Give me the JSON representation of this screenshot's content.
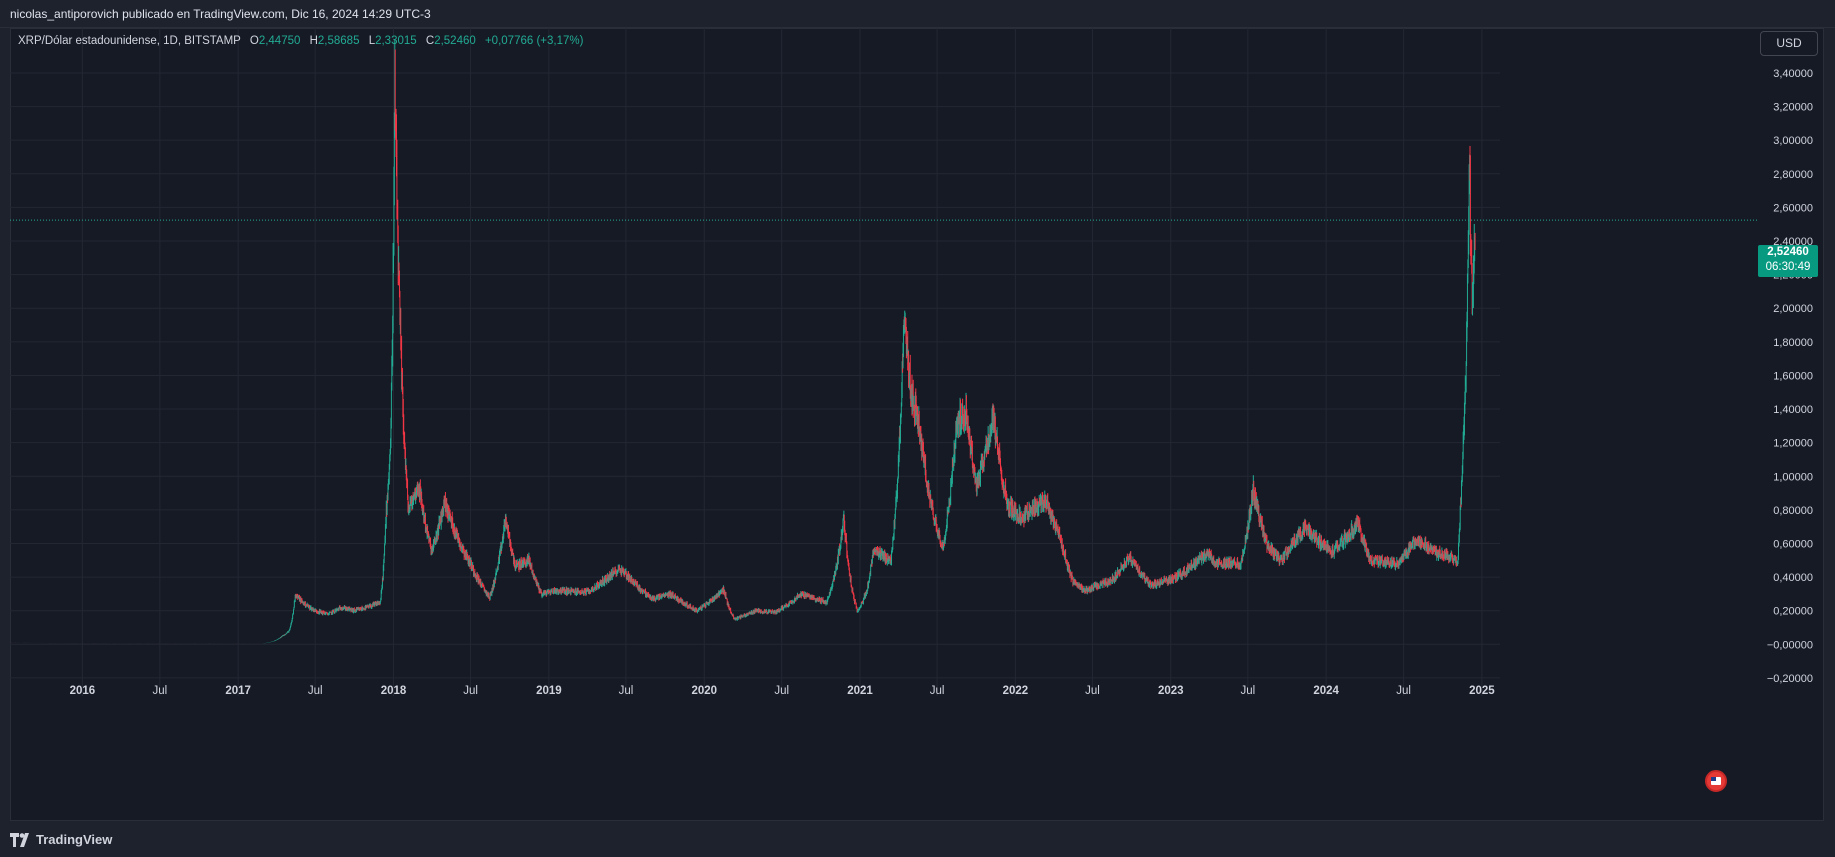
{
  "header": {
    "publisher_line": "nicolas_antiporovich publicado en TradingView.com, Dic 16, 2024 14:29 UTC-3"
  },
  "legend": {
    "symbol": "XRP/Dólar estadounidense, 1D, BITSTAMP",
    "open_label": "O",
    "open": "2,44750",
    "high_label": "H",
    "high": "2,58685",
    "low_label": "L",
    "low": "2,33015",
    "close_label": "C",
    "close": "2,52460",
    "change": "+0,07766 (+3,17%)"
  },
  "currency_button": "USD",
  "price_badge": {
    "price": "2,52460",
    "countdown": "06:30:49"
  },
  "footer": {
    "brand": "TradingView"
  },
  "colors": {
    "up": "#22ab94",
    "down": "#f23645",
    "background": "#161a25",
    "grid": "#232733",
    "badge": "#089981"
  },
  "chart_data": {
    "type": "candlestick",
    "symbol": "XRP/USD",
    "interval": "1D",
    "exchange": "BITSTAMP",
    "ylim": [
      -0.26,
      3.62
    ],
    "y_ticks": [
      "3,40000",
      "3,20000",
      "3,00000",
      "2,80000",
      "2,60000",
      "2,40000",
      "2,20000",
      "2,00000",
      "1,80000",
      "1,60000",
      "1,40000",
      "1,20000",
      "1,00000",
      "0,80000",
      "0,60000",
      "0,40000",
      "0,20000",
      "−0,00000",
      "−0,20000"
    ],
    "y_tick_values": [
      3.4,
      3.2,
      3.0,
      2.8,
      2.6,
      2.4,
      2.2,
      2.0,
      1.8,
      1.6,
      1.4,
      1.2,
      1.0,
      0.8,
      0.6,
      0.4,
      0.2,
      0.0,
      -0.2
    ],
    "x_ticks": [
      "2016",
      "Jul",
      "2017",
      "Jul",
      "2018",
      "Jul",
      "2019",
      "Jul",
      "2020",
      "Jul",
      "2021",
      "Jul",
      "2022",
      "Jul",
      "2023",
      "Jul",
      "2024",
      "Jul",
      "2025"
    ],
    "x_tick_dates": [
      "2016-01-01",
      "2016-07-01",
      "2017-01-01",
      "2017-07-01",
      "2018-01-01",
      "2018-07-01",
      "2019-01-01",
      "2019-07-01",
      "2020-01-01",
      "2020-07-01",
      "2021-01-01",
      "2021-07-01",
      "2022-01-01",
      "2022-07-01",
      "2023-01-01",
      "2023-07-01",
      "2024-01-01",
      "2024-07-01",
      "2025-01-01"
    ],
    "x_range": [
      "2015-07-15",
      "2025-01-20"
    ],
    "last_price": 2.5246,
    "grid": true,
    "price_path": [
      [
        "2015-07-15",
        0.008
      ],
      [
        "2016-07-01",
        0.007
      ],
      [
        "2017-03-01",
        0.006
      ],
      [
        "2017-04-15",
        0.05
      ],
      [
        "2017-05-01",
        0.08
      ],
      [
        "2017-05-15",
        0.3
      ],
      [
        "2017-06-01",
        0.25
      ],
      [
        "2017-07-01",
        0.2
      ],
      [
        "2017-08-01",
        0.18
      ],
      [
        "2017-09-01",
        0.22
      ],
      [
        "2017-10-01",
        0.2
      ],
      [
        "2017-11-01",
        0.22
      ],
      [
        "2017-12-01",
        0.25
      ],
      [
        "2017-12-15",
        0.8
      ],
      [
        "2017-12-25",
        1.2
      ],
      [
        "2018-01-04",
        3.3
      ],
      [
        "2018-01-20",
        1.6
      ],
      [
        "2018-02-05",
        0.8
      ],
      [
        "2018-03-01",
        0.95
      ],
      [
        "2018-04-01",
        0.55
      ],
      [
        "2018-05-01",
        0.85
      ],
      [
        "2018-07-01",
        0.48
      ],
      [
        "2018-08-15",
        0.28
      ],
      [
        "2018-09-21",
        0.75
      ],
      [
        "2018-10-15",
        0.46
      ],
      [
        "2018-11-15",
        0.5
      ],
      [
        "2018-12-15",
        0.3
      ],
      [
        "2019-01-15",
        0.32
      ],
      [
        "2019-04-01",
        0.31
      ],
      [
        "2019-06-15",
        0.45
      ],
      [
        "2019-07-01",
        0.42
      ],
      [
        "2019-09-01",
        0.27
      ],
      [
        "2019-10-15",
        0.3
      ],
      [
        "2019-12-15",
        0.2
      ],
      [
        "2020-02-15",
        0.33
      ],
      [
        "2020-03-12",
        0.15
      ],
      [
        "2020-05-01",
        0.2
      ],
      [
        "2020-06-15",
        0.19
      ],
      [
        "2020-08-15",
        0.3
      ],
      [
        "2020-10-15",
        0.25
      ],
      [
        "2020-11-24",
        0.75
      ],
      [
        "2020-12-25",
        0.2
      ],
      [
        "2021-01-15",
        0.3
      ],
      [
        "2021-02-01",
        0.55
      ],
      [
        "2021-03-15",
        0.5
      ],
      [
        "2021-04-14",
        1.95
      ],
      [
        "2021-05-01",
        1.5
      ],
      [
        "2021-05-20",
        1.3
      ],
      [
        "2021-06-15",
        0.85
      ],
      [
        "2021-07-15",
        0.58
      ],
      [
        "2021-08-15",
        1.3
      ],
      [
        "2021-09-07",
        1.4
      ],
      [
        "2021-10-01",
        0.95
      ],
      [
        "2021-11-10",
        1.35
      ],
      [
        "2021-12-15",
        0.82
      ],
      [
        "2022-01-15",
        0.75
      ],
      [
        "2022-02-15",
        0.82
      ],
      [
        "2022-03-15",
        0.85
      ],
      [
        "2022-04-15",
        0.65
      ],
      [
        "2022-05-15",
        0.38
      ],
      [
        "2022-06-15",
        0.32
      ],
      [
        "2022-08-15",
        0.38
      ],
      [
        "2022-09-25",
        0.52
      ],
      [
        "2022-11-15",
        0.35
      ],
      [
        "2023-01-15",
        0.4
      ],
      [
        "2023-03-29",
        0.55
      ],
      [
        "2023-04-15",
        0.48
      ],
      [
        "2023-06-15",
        0.48
      ],
      [
        "2023-07-13",
        0.93
      ],
      [
        "2023-08-15",
        0.6
      ],
      [
        "2023-09-15",
        0.5
      ],
      [
        "2023-11-10",
        0.7
      ],
      [
        "2024-01-15",
        0.55
      ],
      [
        "2024-03-15",
        0.72
      ],
      [
        "2024-04-15",
        0.5
      ],
      [
        "2024-06-15",
        0.48
      ],
      [
        "2024-07-31",
        0.62
      ],
      [
        "2024-09-15",
        0.55
      ],
      [
        "2024-10-15",
        0.53
      ],
      [
        "2024-11-05",
        0.5
      ],
      [
        "2024-11-16",
        1.1
      ],
      [
        "2024-11-23",
        1.5
      ],
      [
        "2024-12-02",
        2.7
      ],
      [
        "2024-12-03",
        2.9
      ],
      [
        "2024-12-06",
        2.3
      ],
      [
        "2024-12-10",
        2.1
      ],
      [
        "2024-12-16",
        2.52
      ]
    ]
  }
}
